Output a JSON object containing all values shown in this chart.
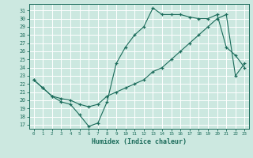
{
  "xlabel": "Humidex (Indice chaleur)",
  "bg_color": "#cce8e0",
  "line_color": "#1a6b5a",
  "grid_color": "#ffffff",
  "xlim": [
    -0.5,
    23.5
  ],
  "ylim": [
    16.5,
    31.8
  ],
  "xticks": [
    0,
    1,
    2,
    3,
    4,
    5,
    6,
    7,
    8,
    9,
    10,
    11,
    12,
    13,
    14,
    15,
    16,
    17,
    18,
    19,
    20,
    21,
    22,
    23
  ],
  "yticks": [
    17,
    18,
    19,
    20,
    21,
    22,
    23,
    24,
    25,
    26,
    27,
    28,
    29,
    30,
    31
  ],
  "line1_x": [
    0,
    1,
    2,
    3,
    4,
    5,
    6,
    7,
    8,
    9,
    10,
    11,
    12,
    13,
    14,
    15,
    16,
    17,
    18,
    19,
    20,
    21,
    22,
    23
  ],
  "line1_y": [
    22.5,
    21.5,
    20.5,
    19.8,
    19.5,
    18.2,
    16.8,
    17.2,
    19.8,
    24.5,
    26.5,
    28.0,
    29.0,
    31.3,
    30.5,
    30.5,
    30.5,
    30.2,
    30.0,
    30.0,
    30.5,
    26.5,
    25.5,
    24.0
  ],
  "line2_x": [
    0,
    1,
    2,
    3,
    4,
    5,
    6,
    7,
    8,
    9,
    10,
    11,
    12,
    13,
    14,
    15,
    16,
    17,
    18,
    19,
    20,
    21,
    22,
    23
  ],
  "line2_y": [
    22.5,
    21.5,
    20.5,
    20.2,
    20.0,
    19.5,
    19.2,
    19.5,
    20.5,
    21.0,
    21.5,
    22.0,
    22.5,
    23.5,
    24.0,
    25.0,
    26.0,
    27.0,
    28.0,
    29.0,
    30.0,
    30.5,
    23.0,
    24.5
  ]
}
